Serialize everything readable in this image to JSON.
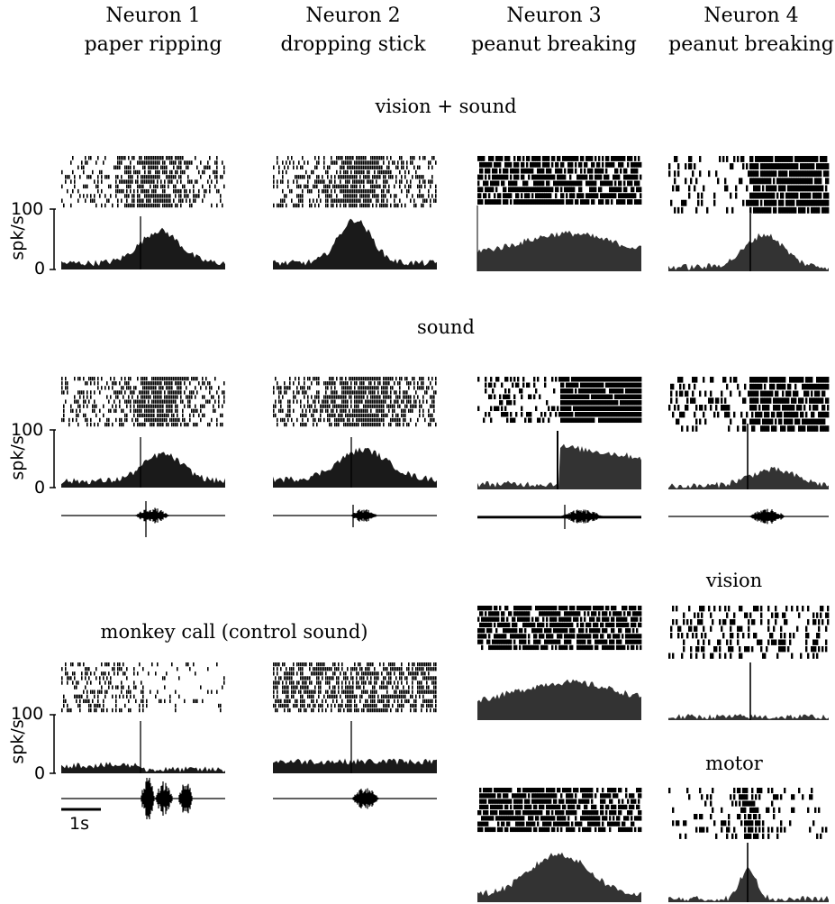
{
  "neurons": [
    {
      "title": "Neuron 1",
      "stimulus": "paper ripping"
    },
    {
      "title": "Neuron 2",
      "stimulus": "dropping stick"
    },
    {
      "title": "Neuron 3",
      "stimulus": "peanut breaking"
    },
    {
      "title": "Neuron 4",
      "stimulus": "peanut breaking"
    }
  ],
  "conditions": {
    "vision_sound": "vision + sound",
    "sound": "sound",
    "monkey_call": "monkey call (control sound)",
    "vision": "vision",
    "motor": "motor"
  },
  "axis": {
    "ylabel": "spk/s",
    "ymax_tick": "100",
    "ymin_tick": "0",
    "scalebar_label": "1s"
  },
  "colors": {
    "raster": "#000000",
    "psth": "#1a1a1a",
    "psth_dark": "#333333"
  }
}
